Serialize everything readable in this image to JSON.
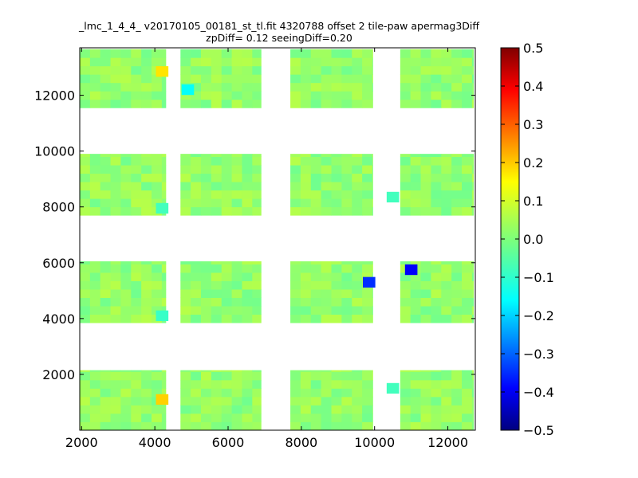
{
  "chart_data": {
    "type": "heatmap",
    "title_line1": "_lmc_1_4_4_ v20170105_00181_st_tl.fit 4320788 offset 2 tile-paw apermag3Diff",
    "title_line2": "zpDiff= 0.12 seeingDiff=0.20",
    "xlabel": "",
    "ylabel": "",
    "xlim": [
      1950,
      12750
    ],
    "ylim": [
      0,
      13700
    ],
    "x_ticks": [
      2000,
      4000,
      6000,
      8000,
      10000,
      12000
    ],
    "y_ticks": [
      2000,
      4000,
      6000,
      8000,
      10000,
      12000
    ],
    "colorbar": {
      "colormap": "jet",
      "range": [
        -0.5,
        0.5
      ],
      "ticks": [
        0.5,
        0.4,
        0.3,
        0.2,
        0.1,
        0.0,
        -0.1,
        -0.2,
        -0.3,
        -0.4,
        -0.5
      ],
      "tick_labels": [
        "0.5",
        "0.4",
        "0.3",
        "0.2",
        "0.1",
        "0.0",
        "−0.1",
        "−0.2",
        "−0.3",
        "−0.4",
        "−0.5"
      ]
    },
    "base_value_estimate": 0.02,
    "detector_regions": [
      {
        "x": [
          1950,
          4300
        ],
        "y": [
          0,
          2150
        ]
      },
      {
        "x": [
          4700,
          6900
        ],
        "y": [
          0,
          2150
        ]
      },
      {
        "x": [
          7700,
          9950
        ],
        "y": [
          0,
          2150
        ]
      },
      {
        "x": [
          10700,
          12700
        ],
        "y": [
          0,
          2150
        ]
      },
      {
        "x": [
          1950,
          4300
        ],
        "y": [
          3850,
          6050
        ]
      },
      {
        "x": [
          4700,
          6900
        ],
        "y": [
          3850,
          6050
        ]
      },
      {
        "x": [
          7700,
          9950
        ],
        "y": [
          3850,
          6050
        ]
      },
      {
        "x": [
          10700,
          12700
        ],
        "y": [
          3850,
          6050
        ]
      },
      {
        "x": [
          1950,
          4300
        ],
        "y": [
          7700,
          9900
        ]
      },
      {
        "x": [
          4700,
          6900
        ],
        "y": [
          7700,
          9900
        ]
      },
      {
        "x": [
          7700,
          9950
        ],
        "y": [
          7700,
          9900
        ]
      },
      {
        "x": [
          10700,
          12700
        ],
        "y": [
          7700,
          9900
        ]
      },
      {
        "x": [
          1950,
          4300
        ],
        "y": [
          11550,
          13650
        ]
      },
      {
        "x": [
          4700,
          6900
        ],
        "y": [
          11550,
          13650
        ]
      },
      {
        "x": [
          7700,
          9950
        ],
        "y": [
          11550,
          13650
        ]
      },
      {
        "x": [
          10700,
          12700
        ],
        "y": [
          11550,
          13650
        ]
      }
    ],
    "notable_cells": [
      {
        "x": 4200,
        "y": 12850,
        "value": 0.15
      },
      {
        "x": 4200,
        "y": 1100,
        "value": 0.17
      },
      {
        "x": 4900,
        "y": 12200,
        "value": -0.12
      },
      {
        "x": 9850,
        "y": 5300,
        "value": -0.33
      },
      {
        "x": 11000,
        "y": 5750,
        "value": -0.38
      },
      {
        "x": 4200,
        "y": 4100,
        "value": -0.07
      },
      {
        "x": 4200,
        "y": 7950,
        "value": -0.06
      },
      {
        "x": 10500,
        "y": 8350,
        "value": -0.06
      },
      {
        "x": 10500,
        "y": 1500,
        "value": -0.06
      }
    ]
  }
}
